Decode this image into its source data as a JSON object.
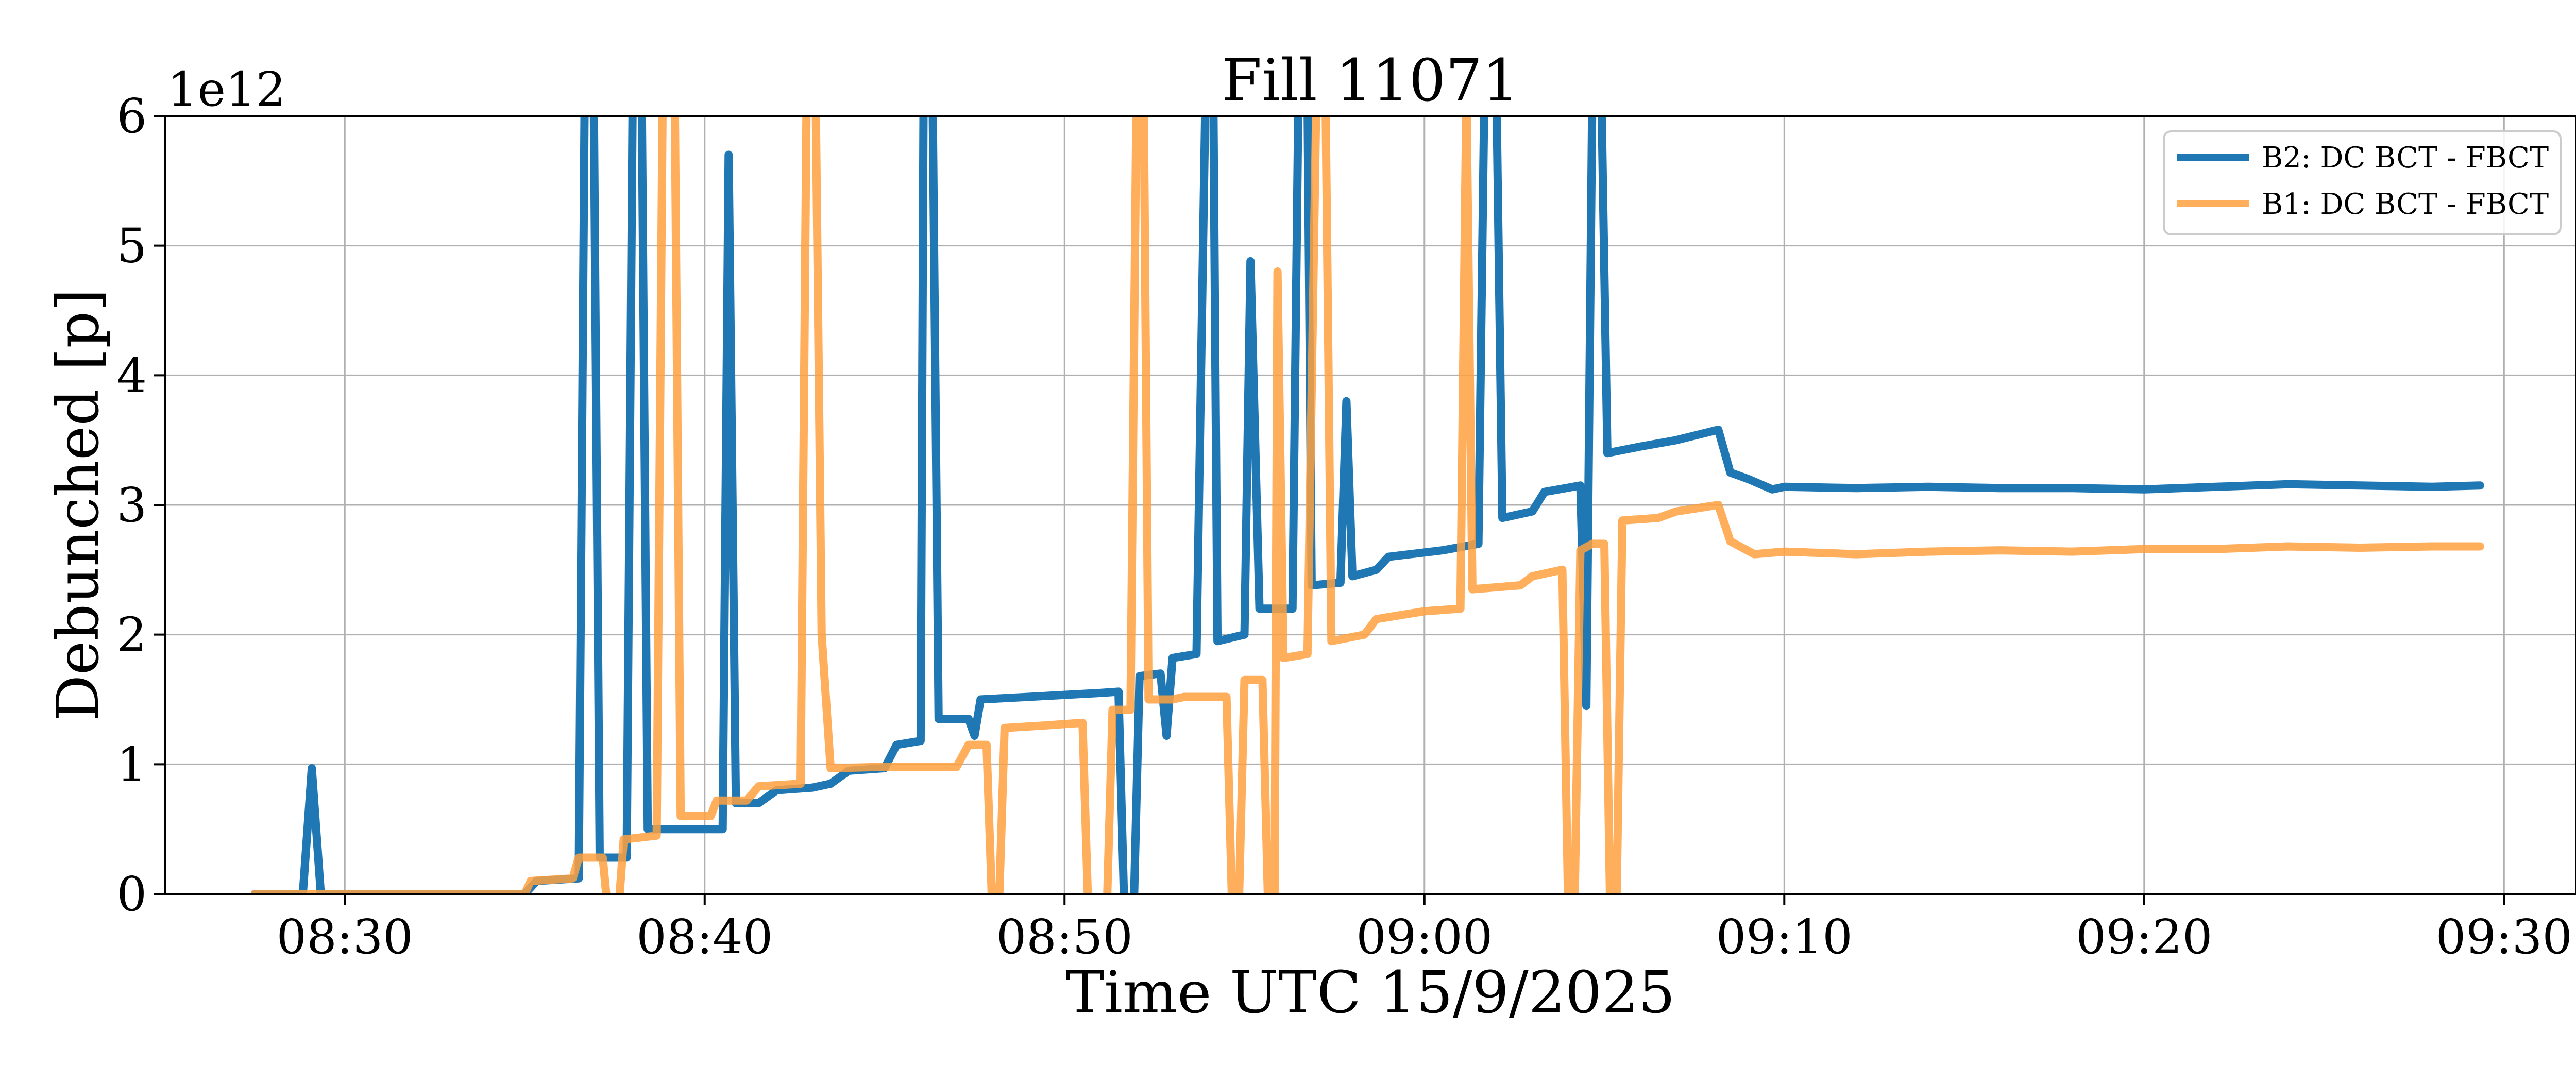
{
  "chart_data": {
    "type": "line",
    "title": "Fill 11071",
    "xlabel": "Time UTC 15/9/2025",
    "ylabel": "Debunched [p]",
    "y_offset_label": "1e12",
    "xlim": [
      "08:25",
      "09:32"
    ],
    "ylim": [
      0,
      6
    ],
    "x_ticks": [
      "08:30",
      "08:40",
      "08:50",
      "09:00",
      "09:10",
      "09:20",
      "09:30"
    ],
    "y_ticks": [
      0,
      1,
      2,
      3,
      4,
      5,
      6
    ],
    "grid": true,
    "legend_position": "upper right",
    "series": [
      {
        "name": "B2: DC BCT - FBCT",
        "color": "#1f77b4",
        "points": [
          [
            "08:27:30",
            0
          ],
          [
            "08:28:50",
            0
          ],
          [
            "08:29:05",
            0.97
          ],
          [
            "08:29:20",
            0
          ],
          [
            "08:35:00",
            0
          ],
          [
            "08:35:20",
            0.1
          ],
          [
            "08:36:30",
            0.12
          ],
          [
            "08:36:40",
            6.2
          ],
          [
            "08:36:55",
            6.2
          ],
          [
            "08:37:05",
            0.28
          ],
          [
            "08:37:50",
            0.28
          ],
          [
            "08:38:00",
            6.2
          ],
          [
            "08:38:15",
            6.2
          ],
          [
            "08:38:25",
            0.5
          ],
          [
            "08:40:30",
            0.5
          ],
          [
            "08:40:40",
            5.7
          ],
          [
            "08:40:52",
            0.7
          ],
          [
            "08:41:30",
            0.7
          ],
          [
            "08:42:00",
            0.8
          ],
          [
            "08:43:00",
            0.82
          ],
          [
            "08:43:30",
            0.85
          ],
          [
            "08:44:00",
            0.95
          ],
          [
            "08:45:00",
            0.97
          ],
          [
            "08:45:20",
            1.15
          ],
          [
            "08:46:00",
            1.18
          ],
          [
            "08:46:05",
            6.2
          ],
          [
            "08:46:20",
            6.2
          ],
          [
            "08:46:30",
            1.35
          ],
          [
            "08:47:20",
            1.35
          ],
          [
            "08:47:30",
            1.22
          ],
          [
            "08:47:40",
            1.5
          ],
          [
            "08:49:00",
            1.52
          ],
          [
            "08:51:00",
            1.55
          ],
          [
            "08:51:30",
            1.56
          ],
          [
            "08:51:40",
            -0.2
          ],
          [
            "08:51:55",
            -0.2
          ],
          [
            "08:52:05",
            1.68
          ],
          [
            "08:52:40",
            1.7
          ],
          [
            "08:52:50",
            1.22
          ],
          [
            "08:53:00",
            1.82
          ],
          [
            "08:53:40",
            1.85
          ],
          [
            "08:53:55",
            6.2
          ],
          [
            "08:54:08",
            6.2
          ],
          [
            "08:54:15",
            1.95
          ],
          [
            "08:55:00",
            2.0
          ],
          [
            "08:55:10",
            4.88
          ],
          [
            "08:55:25",
            2.2
          ],
          [
            "08:56:20",
            2.2
          ],
          [
            "08:56:30",
            6.2
          ],
          [
            "08:56:45",
            6.2
          ],
          [
            "08:56:52",
            2.38
          ],
          [
            "08:57:40",
            2.4
          ],
          [
            "08:57:50",
            3.8
          ],
          [
            "08:58:00",
            2.45
          ],
          [
            "08:58:40",
            2.5
          ],
          [
            "08:59:00",
            2.6
          ],
          [
            "09:00:30",
            2.65
          ],
          [
            "09:01:30",
            2.7
          ],
          [
            "09:01:40",
            6.2
          ],
          [
            "09:02:00",
            6.2
          ],
          [
            "09:02:10",
            2.9
          ],
          [
            "09:03:00",
            2.95
          ],
          [
            "09:03:20",
            3.1
          ],
          [
            "09:04:20",
            3.15
          ],
          [
            "09:04:30",
            1.45
          ],
          [
            "09:04:40",
            6.2
          ],
          [
            "09:04:55",
            6.2
          ],
          [
            "09:05:05",
            3.4
          ],
          [
            "09:06:00",
            3.45
          ],
          [
            "09:07:00",
            3.5
          ],
          [
            "09:08:10",
            3.58
          ],
          [
            "09:08:30",
            3.25
          ],
          [
            "09:09:00",
            3.2
          ],
          [
            "09:09:40",
            3.12
          ],
          [
            "09:10:00",
            3.14
          ],
          [
            "09:12:00",
            3.13
          ],
          [
            "09:14:00",
            3.14
          ],
          [
            "09:16:00",
            3.13
          ],
          [
            "09:18:00",
            3.13
          ],
          [
            "09:20:00",
            3.12
          ],
          [
            "09:22:00",
            3.14
          ],
          [
            "09:24:00",
            3.16
          ],
          [
            "09:26:00",
            3.15
          ],
          [
            "09:28:00",
            3.14
          ],
          [
            "09:29:20",
            3.15
          ]
        ]
      },
      {
        "name": "B1: DC BCT - FBCT",
        "color": "#ffa040",
        "points": [
          [
            "08:27:30",
            0
          ],
          [
            "08:35:00",
            0
          ],
          [
            "08:35:10",
            0.1
          ],
          [
            "08:36:20",
            0.12
          ],
          [
            "08:36:30",
            0.28
          ],
          [
            "08:37:10",
            0.28
          ],
          [
            "08:37:20",
            -0.2
          ],
          [
            "08:37:35",
            -0.2
          ],
          [
            "08:37:45",
            0.42
          ],
          [
            "08:38:40",
            0.45
          ],
          [
            "08:38:50",
            6.2
          ],
          [
            "08:39:10",
            6.2
          ],
          [
            "08:39:20",
            0.6
          ],
          [
            "08:40:10",
            0.6
          ],
          [
            "08:40:20",
            0.72
          ],
          [
            "08:41:10",
            0.72
          ],
          [
            "08:41:30",
            0.83
          ],
          [
            "08:42:40",
            0.85
          ],
          [
            "08:42:50",
            6.2
          ],
          [
            "08:43:05",
            6.2
          ],
          [
            "08:43:15",
            2.0
          ],
          [
            "08:43:30",
            0.97
          ],
          [
            "08:45:00",
            0.98
          ],
          [
            "08:46:30",
            0.98
          ],
          [
            "08:47:00",
            0.98
          ],
          [
            "08:47:20",
            1.15
          ],
          [
            "08:47:50",
            1.15
          ],
          [
            "08:48:00",
            -0.2
          ],
          [
            "08:48:10",
            -0.2
          ],
          [
            "08:48:20",
            1.28
          ],
          [
            "08:49:30",
            1.3
          ],
          [
            "08:50:30",
            1.32
          ],
          [
            "08:50:40",
            -0.2
          ],
          [
            "08:51:10",
            -0.2
          ],
          [
            "08:51:20",
            1.42
          ],
          [
            "08:51:50",
            1.42
          ],
          [
            "08:52:00",
            6.2
          ],
          [
            "08:52:12",
            6.2
          ],
          [
            "08:52:20",
            1.5
          ],
          [
            "08:53:00",
            1.5
          ],
          [
            "08:53:20",
            1.52
          ],
          [
            "08:54:30",
            1.52
          ],
          [
            "08:54:40",
            -0.2
          ],
          [
            "08:54:50",
            -0.2
          ],
          [
            "08:55:00",
            1.65
          ],
          [
            "08:55:30",
            1.65
          ],
          [
            "08:55:40",
            -0.2
          ],
          [
            "08:55:50",
            -0.2
          ],
          [
            "08:55:55",
            4.8
          ],
          [
            "08:56:05",
            1.82
          ],
          [
            "08:56:45",
            1.85
          ],
          [
            "08:57:00",
            6.2
          ],
          [
            "08:57:15",
            6.2
          ],
          [
            "08:57:25",
            1.95
          ],
          [
            "08:58:20",
            2.0
          ],
          [
            "08:58:40",
            2.12
          ],
          [
            "09:00:00",
            2.18
          ],
          [
            "09:01:00",
            2.2
          ],
          [
            "09:01:10",
            6.2
          ],
          [
            "09:01:20",
            2.35
          ],
          [
            "09:02:40",
            2.38
          ],
          [
            "09:03:00",
            2.45
          ],
          [
            "09:03:50",
            2.5
          ],
          [
            "09:04:00",
            -0.2
          ],
          [
            "09:04:10",
            -0.2
          ],
          [
            "09:04:20",
            2.65
          ],
          [
            "09:04:40",
            2.7
          ],
          [
            "09:05:00",
            2.7
          ],
          [
            "09:05:10",
            -0.2
          ],
          [
            "09:05:20",
            -0.2
          ],
          [
            "09:05:30",
            2.88
          ],
          [
            "09:06:30",
            2.9
          ],
          [
            "09:07:00",
            2.95
          ],
          [
            "09:08:10",
            3.0
          ],
          [
            "09:08:30",
            2.72
          ],
          [
            "09:09:10",
            2.62
          ],
          [
            "09:10:00",
            2.64
          ],
          [
            "09:12:00",
            2.62
          ],
          [
            "09:14:00",
            2.64
          ],
          [
            "09:16:00",
            2.65
          ],
          [
            "09:18:00",
            2.64
          ],
          [
            "09:20:00",
            2.66
          ],
          [
            "09:22:00",
            2.66
          ],
          [
            "09:24:00",
            2.68
          ],
          [
            "09:26:00",
            2.67
          ],
          [
            "09:28:00",
            2.68
          ],
          [
            "09:29:20",
            2.68
          ]
        ]
      }
    ]
  }
}
